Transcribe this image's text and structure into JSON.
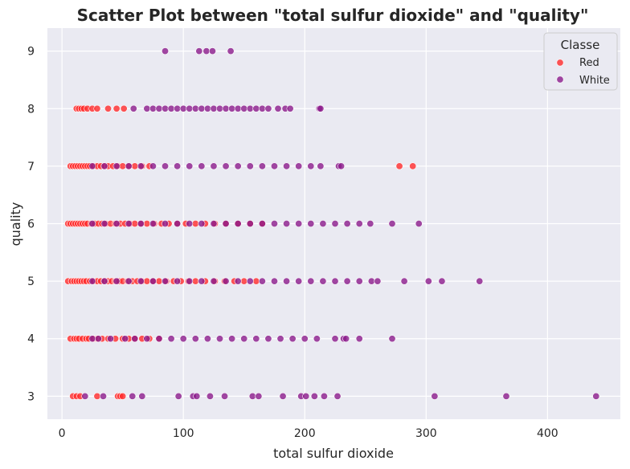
{
  "chart_data": {
    "type": "scatter",
    "title": "Scatter Plot between \"total sulfur dioxide\" and \"quality\"",
    "xlabel": "total sulfur dioxide",
    "ylabel": "quality",
    "xlim": [
      -12,
      460
    ],
    "ylim": [
      2.6,
      9.4
    ],
    "xticks": [
      0,
      100,
      200,
      300,
      400
    ],
    "yticks": [
      3,
      4,
      5,
      6,
      7,
      8,
      9
    ],
    "grid": true,
    "legend": {
      "title": "Classe",
      "placement": "top-right"
    },
    "series": [
      {
        "name": "Red",
        "color": "#ff2a2a",
        "points": [
          [
            9,
            3
          ],
          [
            12,
            3
          ],
          [
            15,
            3
          ],
          [
            29,
            3
          ],
          [
            46,
            3
          ],
          [
            48,
            3
          ],
          [
            50,
            3
          ],
          [
            7,
            4
          ],
          [
            10,
            4
          ],
          [
            12,
            4
          ],
          [
            14,
            4
          ],
          [
            17,
            4
          ],
          [
            20,
            4
          ],
          [
            22,
            4
          ],
          [
            26,
            4
          ],
          [
            29,
            4
          ],
          [
            33,
            4
          ],
          [
            38,
            4
          ],
          [
            44,
            4
          ],
          [
            50,
            4
          ],
          [
            55,
            4
          ],
          [
            60,
            4
          ],
          [
            66,
            4
          ],
          [
            72,
            4
          ],
          [
            80,
            4
          ],
          [
            5,
            5
          ],
          [
            8,
            5
          ],
          [
            10,
            5
          ],
          [
            12,
            5
          ],
          [
            14,
            5
          ],
          [
            16,
            5
          ],
          [
            18,
            5
          ],
          [
            20,
            5
          ],
          [
            23,
            5
          ],
          [
            26,
            5
          ],
          [
            29,
            5
          ],
          [
            32,
            5
          ],
          [
            35,
            5
          ],
          [
            38,
            5
          ],
          [
            41,
            5
          ],
          [
            44,
            5
          ],
          [
            47,
            5
          ],
          [
            50,
            5
          ],
          [
            54,
            5
          ],
          [
            58,
            5
          ],
          [
            62,
            5
          ],
          [
            66,
            5
          ],
          [
            70,
            5
          ],
          [
            75,
            5
          ],
          [
            80,
            5
          ],
          [
            86,
            5
          ],
          [
            92,
            5
          ],
          [
            98,
            5
          ],
          [
            104,
            5
          ],
          [
            110,
            5
          ],
          [
            118,
            5
          ],
          [
            126,
            5
          ],
          [
            134,
            5
          ],
          [
            142,
            5
          ],
          [
            150,
            5
          ],
          [
            160,
            5
          ],
          [
            5,
            6
          ],
          [
            7,
            6
          ],
          [
            9,
            6
          ],
          [
            11,
            6
          ],
          [
            13,
            6
          ],
          [
            15,
            6
          ],
          [
            17,
            6
          ],
          [
            19,
            6
          ],
          [
            21,
            6
          ],
          [
            24,
            6
          ],
          [
            27,
            6
          ],
          [
            30,
            6
          ],
          [
            33,
            6
          ],
          [
            36,
            6
          ],
          [
            40,
            6
          ],
          [
            44,
            6
          ],
          [
            48,
            6
          ],
          [
            52,
            6
          ],
          [
            56,
            6
          ],
          [
            60,
            6
          ],
          [
            65,
            6
          ],
          [
            70,
            6
          ],
          [
            76,
            6
          ],
          [
            82,
            6
          ],
          [
            88,
            6
          ],
          [
            95,
            6
          ],
          [
            102,
            6
          ],
          [
            110,
            6
          ],
          [
            118,
            6
          ],
          [
            126,
            6
          ],
          [
            135,
            6
          ],
          [
            145,
            6
          ],
          [
            155,
            6
          ],
          [
            165,
            6
          ],
          [
            7,
            7
          ],
          [
            9,
            7
          ],
          [
            11,
            7
          ],
          [
            13,
            7
          ],
          [
            15,
            7
          ],
          [
            17,
            7
          ],
          [
            19,
            7
          ],
          [
            21,
            7
          ],
          [
            23,
            7
          ],
          [
            26,
            7
          ],
          [
            29,
            7
          ],
          [
            32,
            7
          ],
          [
            35,
            7
          ],
          [
            38,
            7
          ],
          [
            42,
            7
          ],
          [
            46,
            7
          ],
          [
            50,
            7
          ],
          [
            55,
            7
          ],
          [
            60,
            7
          ],
          [
            66,
            7
          ],
          [
            72,
            7
          ],
          [
            278,
            7
          ],
          [
            289,
            7
          ],
          [
            12,
            8
          ],
          [
            14,
            8
          ],
          [
            16,
            8
          ],
          [
            18,
            8
          ],
          [
            21,
            8
          ],
          [
            25,
            8
          ],
          [
            29,
            8
          ],
          [
            38,
            8
          ],
          [
            45,
            8
          ],
          [
            51,
            8
          ]
        ]
      },
      {
        "name": "White",
        "color": "#8b1a8b",
        "points": [
          [
            19,
            3
          ],
          [
            34,
            3
          ],
          [
            58,
            3
          ],
          [
            66,
            3
          ],
          [
            96,
            3
          ],
          [
            108,
            3
          ],
          [
            111,
            3
          ],
          [
            122,
            3
          ],
          [
            134,
            3
          ],
          [
            157,
            3
          ],
          [
            162,
            3
          ],
          [
            182,
            3
          ],
          [
            197,
            3
          ],
          [
            201,
            3
          ],
          [
            208,
            3
          ],
          [
            216,
            3
          ],
          [
            227,
            3
          ],
          [
            307,
            3
          ],
          [
            366,
            3
          ],
          [
            440,
            3
          ],
          [
            25,
            4
          ],
          [
            30,
            4
          ],
          [
            40,
            4
          ],
          [
            52,
            4
          ],
          [
            60,
            4
          ],
          [
            70,
            4
          ],
          [
            80,
            4
          ],
          [
            90,
            4
          ],
          [
            100,
            4
          ],
          [
            110,
            4
          ],
          [
            120,
            4
          ],
          [
            130,
            4
          ],
          [
            140,
            4
          ],
          [
            150,
            4
          ],
          [
            160,
            4
          ],
          [
            170,
            4
          ],
          [
            180,
            4
          ],
          [
            190,
            4
          ],
          [
            200,
            4
          ],
          [
            210,
            4
          ],
          [
            225,
            4
          ],
          [
            232,
            4
          ],
          [
            234,
            4
          ],
          [
            245,
            4
          ],
          [
            272,
            4
          ],
          [
            25,
            5
          ],
          [
            35,
            5
          ],
          [
            45,
            5
          ],
          [
            55,
            5
          ],
          [
            65,
            5
          ],
          [
            75,
            5
          ],
          [
            85,
            5
          ],
          [
            95,
            5
          ],
          [
            105,
            5
          ],
          [
            115,
            5
          ],
          [
            125,
            5
          ],
          [
            135,
            5
          ],
          [
            145,
            5
          ],
          [
            155,
            5
          ],
          [
            165,
            5
          ],
          [
            175,
            5
          ],
          [
            185,
            5
          ],
          [
            195,
            5
          ],
          [
            205,
            5
          ],
          [
            215,
            5
          ],
          [
            225,
            5
          ],
          [
            235,
            5
          ],
          [
            245,
            5
          ],
          [
            255,
            5
          ],
          [
            260,
            5
          ],
          [
            282,
            5
          ],
          [
            302,
            5
          ],
          [
            313,
            5
          ],
          [
            344,
            5
          ],
          [
            25,
            6
          ],
          [
            35,
            6
          ],
          [
            45,
            6
          ],
          [
            55,
            6
          ],
          [
            65,
            6
          ],
          [
            75,
            6
          ],
          [
            85,
            6
          ],
          [
            95,
            6
          ],
          [
            105,
            6
          ],
          [
            115,
            6
          ],
          [
            125,
            6
          ],
          [
            135,
            6
          ],
          [
            145,
            6
          ],
          [
            155,
            6
          ],
          [
            165,
            6
          ],
          [
            175,
            6
          ],
          [
            185,
            6
          ],
          [
            195,
            6
          ],
          [
            205,
            6
          ],
          [
            215,
            6
          ],
          [
            225,
            6
          ],
          [
            235,
            6
          ],
          [
            245,
            6
          ],
          [
            254,
            6
          ],
          [
            272,
            6
          ],
          [
            294,
            6
          ],
          [
            25,
            7
          ],
          [
            35,
            7
          ],
          [
            45,
            7
          ],
          [
            55,
            7
          ],
          [
            65,
            7
          ],
          [
            75,
            7
          ],
          [
            85,
            7
          ],
          [
            95,
            7
          ],
          [
            105,
            7
          ],
          [
            115,
            7
          ],
          [
            125,
            7
          ],
          [
            135,
            7
          ],
          [
            145,
            7
          ],
          [
            155,
            7
          ],
          [
            165,
            7
          ],
          [
            175,
            7
          ],
          [
            185,
            7
          ],
          [
            195,
            7
          ],
          [
            205,
            7
          ],
          [
            213,
            7
          ],
          [
            228,
            7
          ],
          [
            230,
            7
          ],
          [
            59,
            8
          ],
          [
            70,
            8
          ],
          [
            75,
            8
          ],
          [
            80,
            8
          ],
          [
            85,
            8
          ],
          [
            90,
            8
          ],
          [
            95,
            8
          ],
          [
            100,
            8
          ],
          [
            105,
            8
          ],
          [
            110,
            8
          ],
          [
            115,
            8
          ],
          [
            120,
            8
          ],
          [
            125,
            8
          ],
          [
            130,
            8
          ],
          [
            135,
            8
          ],
          [
            140,
            8
          ],
          [
            145,
            8
          ],
          [
            150,
            8
          ],
          [
            155,
            8
          ],
          [
            160,
            8
          ],
          [
            165,
            8
          ],
          [
            170,
            8
          ],
          [
            178,
            8
          ],
          [
            184,
            8
          ],
          [
            188,
            8
          ],
          [
            212,
            8
          ],
          [
            213,
            8
          ],
          [
            85,
            9
          ],
          [
            113,
            9
          ],
          [
            119,
            9
          ],
          [
            124,
            9
          ],
          [
            139,
            9
          ]
        ]
      }
    ]
  }
}
